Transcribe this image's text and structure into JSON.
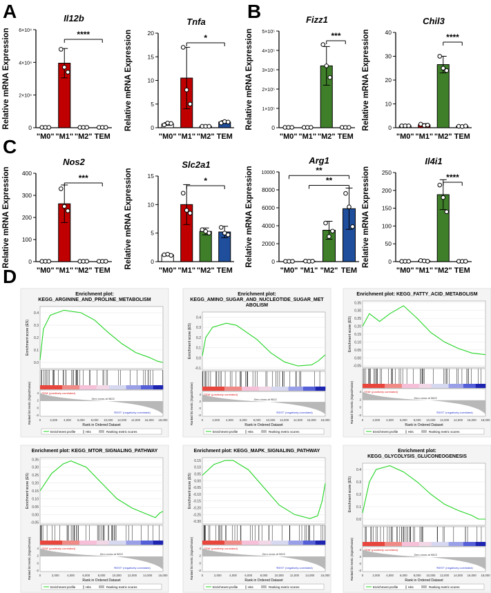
{
  "panels": [
    {
      "label": "A"
    },
    {
      "label": "B"
    },
    {
      "label": "C"
    },
    {
      "label": "D"
    }
  ],
  "colors": {
    "m0": "#ffffff",
    "m1": "#c00000",
    "m2": "#3f7f2a",
    "tem": "#1f4e9c",
    "gsea_line": "#21d421"
  },
  "chart_data": [
    {
      "type": "bar",
      "title": "Il12b",
      "ylabel": "Relative mRNA Expression",
      "categories": [
        "\"M0\"",
        "\"M1\"",
        "\"M2\"",
        "TEM"
      ],
      "values": [
        0,
        39500,
        0,
        0
      ],
      "errors": [
        0,
        9000,
        0,
        0
      ],
      "ylim": [
        0,
        60000
      ],
      "yticks": [
        "0",
        "2×10⁴",
        "4×10⁴",
        "6×10⁴"
      ],
      "points": [
        [
          0,
          0,
          0
        ],
        [
          48000,
          37000,
          34000
        ],
        [
          0,
          0,
          0
        ],
        [
          0,
          0,
          0
        ]
      ],
      "sig": {
        "label": "****",
        "from": 1,
        "to": 3
      }
    },
    {
      "type": "bar",
      "title": "Tnfa",
      "ylabel": "Relative mRNA Expression",
      "categories": [
        "\"M0\"",
        "\"M1\"",
        "\"M2\"",
        "TEM"
      ],
      "values": [
        0.8,
        10.5,
        0.3,
        1.2
      ],
      "errors": [
        0.3,
        6.5,
        0.1,
        0.3
      ],
      "ylim": [
        0,
        20
      ],
      "yticks": [
        "0",
        "5",
        "10",
        "15",
        "20"
      ],
      "points": [
        [
          0.6,
          1.0,
          0.9
        ],
        [
          17,
          8,
          5
        ],
        [
          0.3,
          0.3,
          0.3
        ],
        [
          1.0,
          1.3,
          1.2
        ]
      ],
      "sig": {
        "label": "*",
        "from": 1,
        "to": 3
      }
    },
    {
      "type": "bar",
      "title": "Fizz1",
      "ylabel": "Relative mRNA Expression",
      "categories": [
        "\"M0\"",
        "\"M1\"",
        "\"M2\"",
        "TEM"
      ],
      "values": [
        0,
        0,
        320000,
        0
      ],
      "errors": [
        0,
        0,
        100000,
        0
      ],
      "ylim": [
        0,
        500000
      ],
      "yticks": [
        "0",
        "1×10⁵",
        "2×10⁵",
        "3×10⁵",
        "4×10⁵",
        "5×10⁵"
      ],
      "points": [
        [
          0,
          0,
          0
        ],
        [
          0,
          0,
          0
        ],
        [
          430000,
          320000,
          260000
        ],
        [
          0,
          0,
          0
        ]
      ],
      "sig": {
        "label": "***",
        "from": 2,
        "to": 3
      }
    },
    {
      "type": "bar",
      "title": "Chil3",
      "ylabel": "Relative mRNA Expression",
      "categories": [
        "\"M0\"",
        "\"M1\"",
        "\"M2\"",
        "TEM"
      ],
      "values": [
        0.8,
        1.2,
        26.5,
        0.6
      ],
      "errors": [
        0.2,
        0.5,
        3.5,
        0.2
      ],
      "ylim": [
        0,
        40
      ],
      "yticks": [
        "0",
        "10",
        "20",
        "30",
        "40"
      ],
      "points": [
        [
          0.8,
          0.8,
          0.8
        ],
        [
          1.5,
          0.9,
          1.1
        ],
        [
          30,
          25,
          24
        ],
        [
          0.6,
          0.5,
          0.7
        ]
      ],
      "sig": {
        "label": "****",
        "from": 2,
        "to": 3
      }
    },
    {
      "type": "bar",
      "title": "Nos2",
      "ylabel": "Relative mRNA Expression",
      "categories": [
        "\"M0\"",
        "\"M1\"",
        "\"M2\"",
        "TEM"
      ],
      "values": [
        0,
        262,
        0,
        0
      ],
      "errors": [
        0,
        85,
        0,
        0
      ],
      "ylim": [
        0,
        400
      ],
      "yticks": [
        "0",
        "100",
        "200",
        "300",
        "400"
      ],
      "points": [
        [
          0,
          0,
          0
        ],
        [
          330,
          250,
          230
        ],
        [
          0,
          0,
          0
        ],
        [
          0,
          0,
          0
        ]
      ],
      "sig": {
        "label": "***",
        "from": 1,
        "to": 3
      }
    },
    {
      "type": "bar",
      "title": "Slc2a1",
      "ylabel": "Relative mRNA Expression",
      "categories": [
        "\"M0\"",
        "\"M1\"",
        "\"M2\"",
        "TEM"
      ],
      "values": [
        1.2,
        10,
        5.3,
        5.2
      ],
      "errors": [
        0.2,
        3.5,
        0.6,
        1.0
      ],
      "ylim": [
        0,
        15
      ],
      "yticks": [
        "0",
        "5",
        "10",
        "15"
      ],
      "points": [
        [
          1.2,
          1.3,
          1.1
        ],
        [
          12,
          9,
          8.5
        ],
        [
          5.6,
          5.3,
          5.0
        ],
        [
          6.0,
          5.0,
          4.7
        ]
      ],
      "sig": {
        "label": "*",
        "from": 1,
        "to": 3
      }
    },
    {
      "type": "bar",
      "title": "Arg1",
      "ylabel": "Relative mRNA Expression",
      "categories": [
        "\"M0\"",
        "\"M1\"",
        "\"M2\"",
        "TEM"
      ],
      "values": [
        0,
        50,
        3500,
        5900
      ],
      "errors": [
        0,
        20,
        1000,
        2300
      ],
      "ylim": [
        0,
        10000
      ],
      "yticks": [
        "0",
        "2000",
        "4000",
        "6000",
        "8000",
        "10000"
      ],
      "points": [
        [
          0,
          0,
          0
        ],
        [
          60,
          40,
          50
        ],
        [
          4300,
          2800,
          3400
        ],
        [
          7600,
          6100,
          3900
        ]
      ],
      "sig": [
        {
          "label": "**",
          "from": 0,
          "to": 3,
          "level": 9600
        },
        {
          "label": "**",
          "from": 1,
          "to": 3,
          "level": 8500
        }
      ]
    },
    {
      "type": "bar",
      "title": "Il4i1",
      "ylabel": "Relative mRNA Expression",
      "categories": [
        "\"M0\"",
        "\"M1\"",
        "\"M2\"",
        "TEM"
      ],
      "values": [
        0,
        2,
        188,
        0
      ],
      "errors": [
        0,
        1,
        42,
        0
      ],
      "ylim": [
        0,
        250
      ],
      "yticks": [
        "0",
        "50",
        "100",
        "150",
        "200",
        "250"
      ],
      "points": [
        [
          0,
          0,
          0
        ],
        [
          3,
          2,
          1
        ],
        [
          215,
          180,
          140
        ],
        [
          0,
          0,
          0
        ]
      ],
      "sig": {
        "label": "****",
        "from": 2,
        "to": 3
      }
    },
    {
      "type": "line",
      "title": "Enrichment plot:\nKEGG_ARGININE_AND_PROLINE_METABOLISM",
      "es_ylim": [
        -0.05,
        0.45
      ],
      "es_ticks": [
        "0.4",
        "0.3",
        "0.2",
        "0.1",
        "0.0"
      ],
      "es": [
        [
          0,
          0.02
        ],
        [
          0.5,
          0.27
        ],
        [
          1.5,
          0.38
        ],
        [
          3.5,
          0.42
        ],
        [
          6,
          0.4
        ],
        [
          8,
          0.34
        ],
        [
          10,
          0.24
        ],
        [
          12,
          0.15
        ],
        [
          14,
          0.08
        ],
        [
          16,
          0.04
        ],
        [
          17.2,
          0.01
        ],
        [
          18,
          0.0
        ]
      ],
      "ylabel": "Enrichment score (ES)"
    },
    {
      "type": "line",
      "title": "Enrichment plot:\nKEGG_AMINO_SUGAR_AND_NUCLEOTIDE_SUGAR_MET\nABOLISM",
      "es_ylim": [
        -0.12,
        0.45
      ],
      "es_ticks": [
        "0.4",
        "0.3",
        "0.2",
        "0.1",
        "0.0",
        "-0.1"
      ],
      "es": [
        [
          0,
          0.02
        ],
        [
          0.5,
          0.2
        ],
        [
          1.5,
          0.3
        ],
        [
          3.5,
          0.34
        ],
        [
          5,
          0.32
        ],
        [
          8,
          0.18
        ],
        [
          10,
          0.05
        ],
        [
          12,
          -0.04
        ],
        [
          14,
          -0.08
        ],
        [
          16,
          -0.07
        ],
        [
          17,
          -0.03
        ],
        [
          18,
          0.03
        ]
      ],
      "ylabel": "Enrichment score (ES)"
    },
    {
      "type": "line",
      "title": "Enrichment plot: KEGG_FATTY_ACID_METABOLISM",
      "es_ylim": [
        -0.06,
        0.36
      ],
      "es_ticks": [
        "0.35",
        "0.30",
        "0.25",
        "0.20",
        "0.15",
        "0.10",
        "0.05",
        "0.00",
        "-0.05"
      ],
      "es": [
        [
          0,
          0.2
        ],
        [
          1,
          0.28
        ],
        [
          2.5,
          0.23
        ],
        [
          4,
          0.28
        ],
        [
          6,
          0.33
        ],
        [
          8,
          0.25
        ],
        [
          10,
          0.16
        ],
        [
          12,
          0.1
        ],
        [
          14,
          0.06
        ],
        [
          16,
          0.03
        ],
        [
          18,
          0.02
        ]
      ],
      "ylabel": "Enrichment score (ES)"
    },
    {
      "type": "line",
      "title": "Enrichment plot: KEGG_MTOR_SIGNALING_PATHWAY",
      "es_ylim": [
        -0.06,
        0.36
      ],
      "es_ticks": [
        "0.35",
        "0.30",
        "0.25",
        "0.20",
        "0.15",
        "0.10",
        "0.05",
        "0.00",
        "-0.05"
      ],
      "es": [
        [
          0,
          0.15
        ],
        [
          1.5,
          0.26
        ],
        [
          3,
          0.32
        ],
        [
          4,
          0.34
        ],
        [
          6,
          0.3
        ],
        [
          8,
          0.2
        ],
        [
          10,
          0.1
        ],
        [
          12,
          0.04
        ],
        [
          14,
          0.0
        ],
        [
          15,
          -0.02
        ],
        [
          15.6,
          0.01
        ],
        [
          16,
          0.02
        ]
      ],
      "ylabel": "Enrichment score (ES)"
    },
    {
      "type": "line",
      "title": "Enrichment plot: KEGG_MAPK_SIGNALING_PATHWAY",
      "es_ylim": [
        -0.32,
        0.17
      ],
      "es_ticks": [
        "0.15",
        "0.10",
        "0.05",
        "0.00",
        "-0.05",
        "-0.10",
        "-0.15",
        "-0.20",
        "-0.25",
        "-0.30"
      ],
      "es": [
        [
          0,
          0.04
        ],
        [
          1.5,
          0.12
        ],
        [
          3,
          0.15
        ],
        [
          4,
          0.15
        ],
        [
          6,
          0.08
        ],
        [
          8,
          -0.05
        ],
        [
          10,
          -0.18
        ],
        [
          12,
          -0.25
        ],
        [
          14,
          -0.28
        ],
        [
          15,
          -0.26
        ],
        [
          15.6,
          -0.15
        ],
        [
          16,
          -0.02
        ]
      ],
      "ylabel": "Enrichment score (ES)"
    },
    {
      "type": "line",
      "title": "Enrichment plot:\nKEGG_GLYCOLYSIS_GLUCONEOGENESIS",
      "es_ylim": [
        -0.05,
        0.45
      ],
      "es_ticks": [
        "0.4",
        "0.3",
        "0.2",
        "0.1",
        "0.0"
      ],
      "es": [
        [
          0,
          0.05
        ],
        [
          1,
          0.3
        ],
        [
          2,
          0.4
        ],
        [
          4,
          0.43
        ],
        [
          6,
          0.38
        ],
        [
          8,
          0.3
        ],
        [
          10,
          0.2
        ],
        [
          12,
          0.12
        ],
        [
          14,
          0.07
        ],
        [
          16,
          0.03
        ],
        [
          17,
          0.0
        ],
        [
          18,
          0.0
        ]
      ],
      "ylabel": "Enrichment score (ES)"
    }
  ],
  "gsea_common": {
    "ranked_ylabel": "Ranked list metric (Signal2Noise)",
    "xlabel": "Rank in Ordered Dataset",
    "pos_label": "'TEM' (positively correlated)",
    "neg_label": "'REST' (negatively correlated)",
    "zero_cross": "Zero cross at 9822",
    "legend": [
      "Enrichment profile",
      "Hits",
      "Ranking metric scores"
    ],
    "xticks_18k": [
      "0",
      "2,000",
      "4,000",
      "6,000",
      "8,000",
      "10,000",
      "12,000",
      "14,000",
      "16,000",
      "18,000"
    ],
    "xticks_16k": [
      "0",
      "2,000",
      "4,000",
      "6,000",
      "8,000",
      "10,000",
      "12,000",
      "14,000",
      "16,000"
    ],
    "rank_ticks": [
      "4",
      "2",
      "0",
      "-2"
    ]
  }
}
